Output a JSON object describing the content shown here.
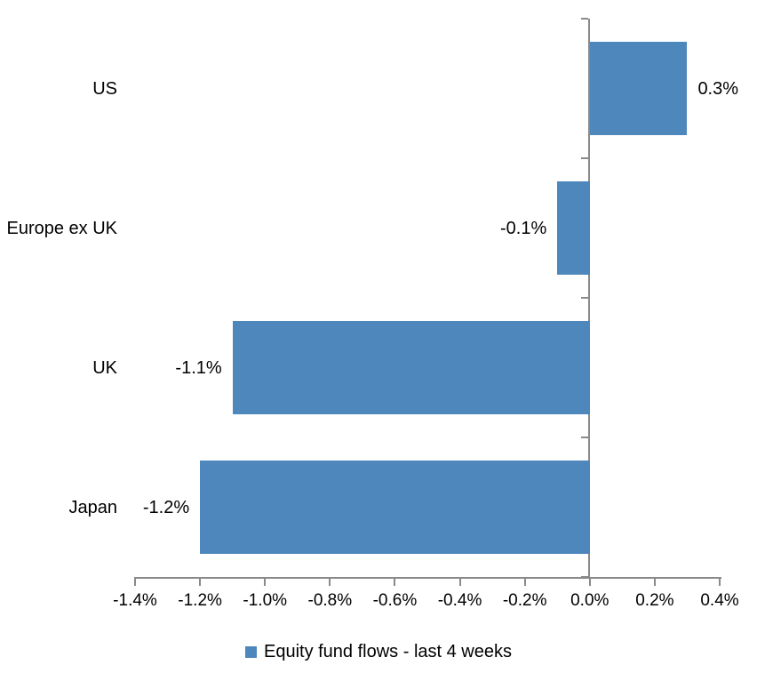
{
  "chart_data": {
    "type": "bar",
    "orientation": "horizontal",
    "title": "",
    "categories": [
      "US",
      "Europe ex UK",
      "UK",
      "Japan"
    ],
    "values": [
      0.3,
      -0.1,
      -1.1,
      -1.2
    ],
    "data_labels": [
      "0.3%",
      "-0.1%",
      "-1.1%",
      "-1.2%"
    ],
    "series_name": "Equity fund flows - last 4 weeks",
    "xlim": [
      -1.4,
      0.4
    ],
    "x_ticks": [
      -1.4,
      -1.2,
      -1.0,
      -0.8,
      -0.6,
      -0.4,
      -0.2,
      0.0,
      0.2,
      0.4
    ],
    "x_tick_labels": [
      "-1.4%",
      "-1.2%",
      "-1.0%",
      "-0.8%",
      "-0.6%",
      "-0.4%",
      "-0.2%",
      "0.0%",
      "0.2%",
      "0.4%"
    ],
    "grid": false,
    "legend_position": "bottom",
    "colors": {
      "bar": "#4e87bc",
      "axis": "#8a8a8a",
      "text": "#000000",
      "background": "#ffffff"
    }
  }
}
